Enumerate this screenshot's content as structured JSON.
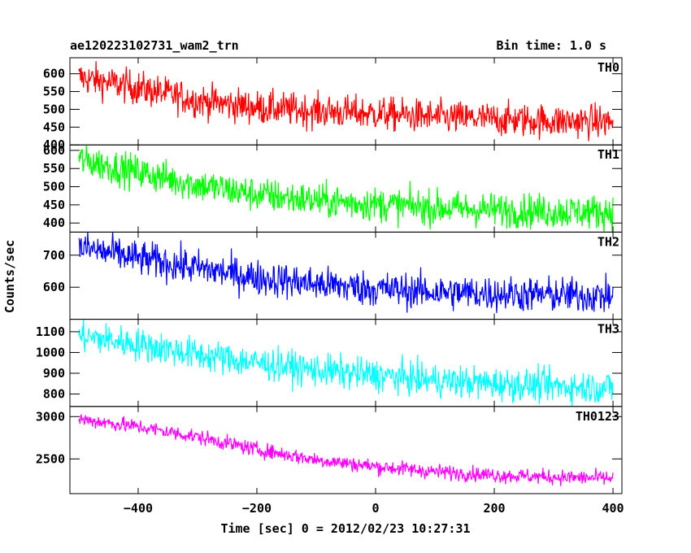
{
  "header": {
    "title": "ae120223102731_wam2_trn",
    "bin_time": "Bin time: 1.0 s"
  },
  "chart_data": {
    "type": "line",
    "xlabel": "Time [sec] 0 = 2012/02/23 10:27:31",
    "ylabel": "Counts/sec",
    "xlim": [
      -515,
      415
    ],
    "xticks": [
      -400,
      -200,
      0,
      200,
      400
    ],
    "x_start": -500,
    "x_end": 400,
    "x_step": 1,
    "grid": false,
    "panels": [
      {
        "name": "TH0",
        "color": "#ff0000",
        "ylim": [
          400,
          645
        ],
        "yticks": [
          400,
          450,
          500,
          550,
          600
        ],
        "trend": [
          [
            -500,
            590
          ],
          [
            -400,
            560
          ],
          [
            -300,
            525
          ],
          [
            -200,
            505
          ],
          [
            -100,
            495
          ],
          [
            0,
            488
          ],
          [
            100,
            478
          ],
          [
            200,
            472
          ],
          [
            300,
            467
          ],
          [
            400,
            465
          ]
        ],
        "noise": 24
      },
      {
        "name": "TH1",
        "color": "#00ff00",
        "ylim": [
          375,
          615
        ],
        "yticks": [
          400,
          450,
          500,
          550,
          600
        ],
        "trend": [
          [
            -500,
            575
          ],
          [
            -400,
            540
          ],
          [
            -300,
            505
          ],
          [
            -200,
            478
          ],
          [
            -100,
            462
          ],
          [
            0,
            452
          ],
          [
            100,
            442
          ],
          [
            200,
            436
          ],
          [
            300,
            432
          ],
          [
            400,
            430
          ]
        ],
        "noise": 24
      },
      {
        "name": "TH2",
        "color": "#0000ff",
        "ylim": [
          500,
          772
        ],
        "yticks": [
          600,
          700
        ],
        "trend": [
          [
            -500,
            725
          ],
          [
            -400,
            690
          ],
          [
            -300,
            660
          ],
          [
            -200,
            630
          ],
          [
            -100,
            610
          ],
          [
            0,
            595
          ],
          [
            100,
            585
          ],
          [
            200,
            580
          ],
          [
            300,
            576
          ],
          [
            400,
            572
          ]
        ],
        "noise": 28
      },
      {
        "name": "TH3",
        "color": "#00ffff",
        "ylim": [
          740,
          1160
        ],
        "yticks": [
          800,
          900,
          1000,
          1100
        ],
        "trend": [
          [
            -500,
            1080
          ],
          [
            -400,
            1040
          ],
          [
            -300,
            990
          ],
          [
            -200,
            950
          ],
          [
            -100,
            915
          ],
          [
            0,
            890
          ],
          [
            100,
            865
          ],
          [
            200,
            850
          ],
          [
            300,
            838
          ],
          [
            400,
            830
          ]
        ],
        "noise": 40
      },
      {
        "name": "TH0123",
        "color": "#ff00ff",
        "ylim": [
          2090,
          3120
        ],
        "yticks": [
          2500,
          3000
        ],
        "trend": [
          [
            -500,
            2970
          ],
          [
            -400,
            2880
          ],
          [
            -300,
            2760
          ],
          [
            -200,
            2610
          ],
          [
            -100,
            2490
          ],
          [
            0,
            2410
          ],
          [
            100,
            2350
          ],
          [
            200,
            2310
          ],
          [
            300,
            2285
          ],
          [
            400,
            2270
          ]
        ],
        "noise": 45
      }
    ]
  }
}
